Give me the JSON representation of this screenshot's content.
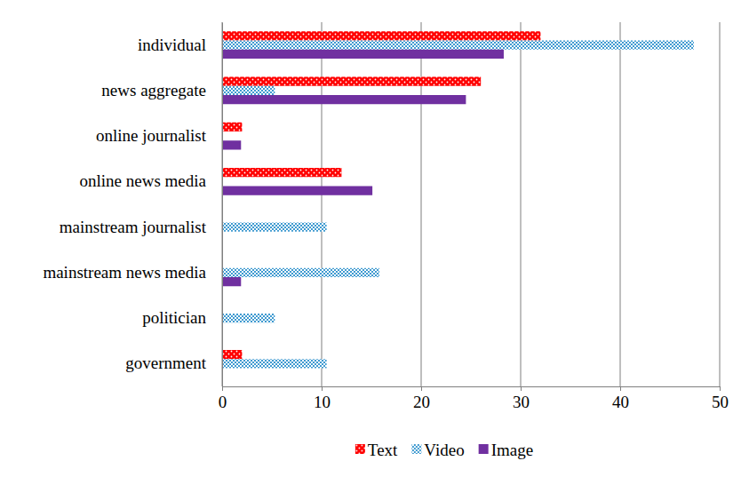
{
  "chart_data": {
    "type": "bar",
    "orientation": "horizontal",
    "categories": [
      "individual",
      "news aggregate",
      "online journalist",
      "online news media",
      "mainstream journalist",
      "mainstream news media",
      "politician",
      "government"
    ],
    "series": [
      {
        "name": "Text",
        "color": "#ff0000",
        "values": [
          32,
          26,
          2,
          12,
          0,
          0,
          0,
          2
        ]
      },
      {
        "name": "Video",
        "color": "#3f9ad0",
        "values": [
          47.4,
          5.3,
          0,
          0,
          10.5,
          15.8,
          5.3,
          10.5
        ]
      },
      {
        "name": "Image",
        "color": "#7030a0",
        "values": [
          28.3,
          24.5,
          1.9,
          15.1,
          0,
          1.9,
          0,
          0
        ]
      }
    ],
    "xlim": [
      0,
      50
    ],
    "xticks": [
      0,
      10,
      20,
      30,
      40,
      50
    ],
    "grid": true,
    "legend": "bottom"
  }
}
